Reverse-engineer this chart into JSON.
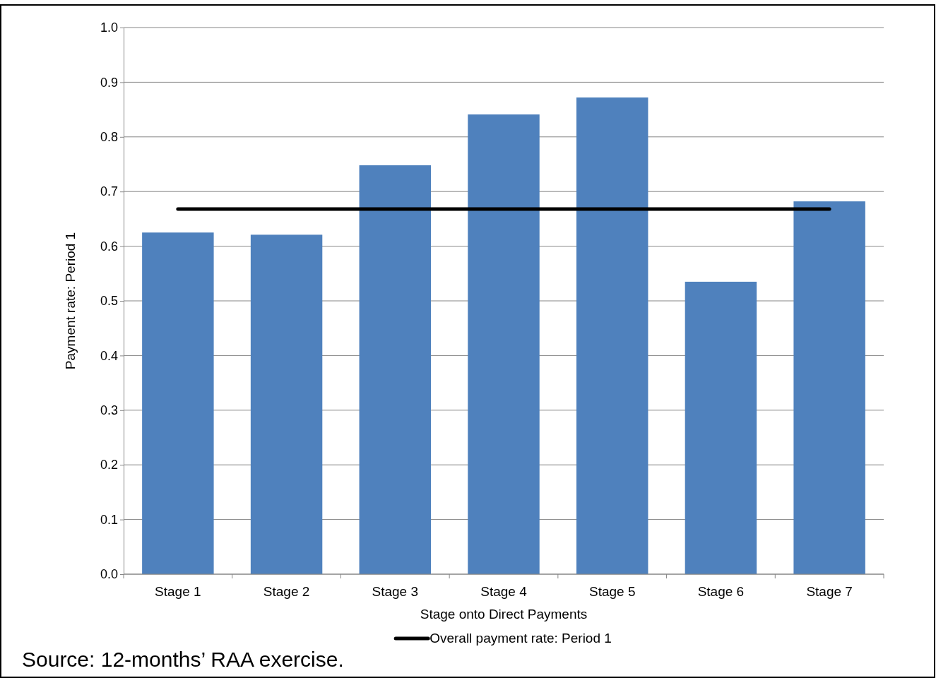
{
  "chart_data": {
    "type": "bar",
    "xlabel": "Stage onto Direct Payments",
    "ylabel": "Payment rate: Period 1",
    "categories": [
      "Stage 1",
      "Stage 2",
      "Stage 3",
      "Stage 4",
      "Stage 5",
      "Stage 6",
      "Stage 7"
    ],
    "series": [
      {
        "color": "#4f81bd",
        "values": [
          0.625,
          0.621,
          0.748,
          0.841,
          0.872,
          0.535,
          0.682
        ]
      },
      {
        "type": "line",
        "name": "Overall payment rate: Period 1",
        "color": "#000000",
        "values": [
          0.668,
          0.668,
          0.668,
          0.668,
          0.668,
          0.668,
          0.668
        ]
      }
    ],
    "ylim": [
      0,
      1
    ],
    "yticks": [
      {
        "value": 0,
        "label": "0.0"
      },
      0.1,
      0.2,
      0.3,
      0.4,
      0.5,
      0.6,
      0.7,
      0.8,
      0.9,
      {
        "value": 1,
        "label": "1.0"
      }
    ],
    "grid": "y",
    "legend": "bottom",
    "marker": "none",
    "line_style": "solid",
    "annotations": [
      "Source: 12-months’ RAA exercise."
    ]
  }
}
